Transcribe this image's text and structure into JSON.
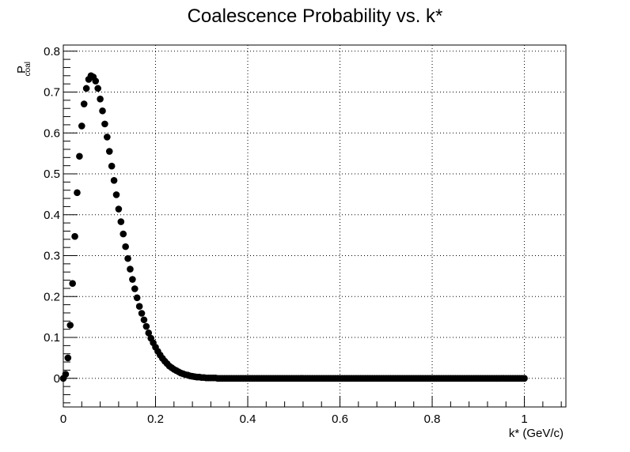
{
  "chart_data": {
    "type": "scatter",
    "title": "Coalescence Probability vs. k*",
    "xlabel": "k* (GeV/c)",
    "ylabel_main": "P",
    "ylabel_sub": "coal",
    "xlim": [
      0,
      1.09
    ],
    "ylim": [
      -0.07,
      0.815
    ],
    "grid": true,
    "x_ticks": [
      {
        "value": 0,
        "label": "0"
      },
      {
        "value": 0.2,
        "label": "0.2"
      },
      {
        "value": 0.4,
        "label": "0.4"
      },
      {
        "value": 0.6,
        "label": "0.6"
      },
      {
        "value": 0.8,
        "label": "0.8"
      },
      {
        "value": 1.0,
        "label": "1"
      }
    ],
    "y_ticks": [
      {
        "value": 0,
        "label": "0"
      },
      {
        "value": 0.1,
        "label": "0.1"
      },
      {
        "value": 0.2,
        "label": "0.2"
      },
      {
        "value": 0.3,
        "label": "0.3"
      },
      {
        "value": 0.4,
        "label": "0.4"
      },
      {
        "value": 0.5,
        "label": "0.5"
      },
      {
        "value": 0.6,
        "label": "0.6"
      },
      {
        "value": 0.7,
        "label": "0.7"
      },
      {
        "value": 0.8,
        "label": "0.8"
      }
    ],
    "marker_color": "#000000",
    "x": [
      0.0,
      0.005,
      0.01,
      0.015,
      0.02,
      0.025,
      0.03,
      0.035,
      0.04,
      0.045,
      0.05,
      0.055,
      0.06,
      0.065,
      0.07,
      0.075,
      0.08,
      0.085,
      0.09,
      0.095,
      0.1,
      0.105,
      0.11,
      0.115,
      0.12,
      0.125,
      0.13,
      0.135,
      0.14,
      0.145,
      0.15,
      0.155,
      0.16,
      0.165,
      0.17,
      0.175,
      0.18,
      0.185,
      0.19,
      0.195,
      0.2,
      0.205,
      0.21,
      0.215,
      0.22,
      0.225,
      0.23,
      0.235,
      0.24,
      0.245,
      0.25,
      0.255,
      0.26,
      0.265,
      0.27,
      0.275,
      0.28,
      0.285,
      0.29,
      0.295,
      0.3,
      0.305,
      0.31,
      0.315,
      0.32,
      0.325,
      0.33,
      0.335,
      0.34,
      0.345,
      0.35,
      0.355,
      0.36,
      0.365,
      0.37,
      0.375,
      0.38,
      0.385,
      0.39,
      0.395,
      0.4,
      0.405,
      0.41,
      0.415,
      0.42,
      0.425,
      0.43,
      0.435,
      0.44,
      0.445,
      0.45,
      0.455,
      0.46,
      0.465,
      0.47,
      0.475,
      0.48,
      0.485,
      0.49,
      0.495,
      0.5,
      0.505,
      0.51,
      0.515,
      0.52,
      0.525,
      0.53,
      0.535,
      0.54,
      0.545,
      0.55,
      0.555,
      0.56,
      0.565,
      0.57,
      0.575,
      0.58,
      0.585,
      0.59,
      0.595,
      0.6,
      0.605,
      0.61,
      0.615,
      0.62,
      0.625,
      0.63,
      0.635,
      0.64,
      0.645,
      0.65,
      0.655,
      0.66,
      0.665,
      0.67,
      0.675,
      0.68,
      0.685,
      0.69,
      0.695,
      0.7,
      0.705,
      0.71,
      0.715,
      0.72,
      0.725,
      0.73,
      0.735,
      0.74,
      0.745,
      0.75,
      0.755,
      0.76,
      0.765,
      0.77,
      0.775,
      0.78,
      0.785,
      0.79,
      0.795,
      0.8,
      0.805,
      0.81,
      0.815,
      0.82,
      0.825,
      0.83,
      0.835,
      0.84,
      0.845,
      0.85,
      0.855,
      0.86,
      0.865,
      0.87,
      0.875,
      0.88,
      0.885,
      0.89,
      0.895,
      0.9,
      0.905,
      0.91,
      0.915,
      0.92,
      0.925,
      0.93,
      0.935,
      0.94,
      0.945,
      0.95,
      0.955,
      0.96,
      0.965,
      0.97,
      0.975,
      0.98,
      0.985,
      0.99,
      0.995,
      1.0
    ],
    "y": [
      0.0,
      0.01,
      0.05,
      0.13,
      0.232,
      0.347,
      0.454,
      0.543,
      0.617,
      0.671,
      0.709,
      0.731,
      0.74,
      0.737,
      0.727,
      0.709,
      0.683,
      0.654,
      0.622,
      0.59,
      0.555,
      0.519,
      0.484,
      0.449,
      0.414,
      0.383,
      0.353,
      0.322,
      0.293,
      0.267,
      0.242,
      0.219,
      0.197,
      0.176,
      0.159,
      0.143,
      0.127,
      0.111,
      0.098,
      0.087,
      0.076,
      0.066,
      0.057,
      0.049,
      0.042,
      0.036,
      0.03,
      0.026,
      0.022,
      0.019,
      0.016,
      0.013,
      0.011,
      0.009,
      0.008,
      0.006,
      0.005,
      0.004,
      0.003,
      0.003,
      0.002,
      0.002,
      0.001,
      0.001,
      0.001,
      0.001,
      0.001,
      0.0,
      0.0,
      0.0,
      0.0,
      0.0,
      0.0,
      0.0,
      0.0,
      0.0,
      0.0,
      0.0,
      0.0,
      0.0,
      0.0,
      0.0,
      0.0,
      0.0,
      0.0,
      0.0,
      0.0,
      0.0,
      0.0,
      0.0,
      0.0,
      0.0,
      0.0,
      0.0,
      0.0,
      0.0,
      0.0,
      0.0,
      0.0,
      0.0,
      0.0,
      0.0,
      0.0,
      0.0,
      0.0,
      0.0,
      0.0,
      0.0,
      0.0,
      0.0,
      0.0,
      0.0,
      0.0,
      0.0,
      0.0,
      0.0,
      0.0,
      0.0,
      0.0,
      0.0,
      0.0,
      0.0,
      0.0,
      0.0,
      0.0,
      0.0,
      0.0,
      0.0,
      0.0,
      0.0,
      0.0,
      0.0,
      0.0,
      0.0,
      0.0,
      0.0,
      0.0,
      0.0,
      0.0,
      0.0,
      0.0,
      0.0,
      0.0,
      0.0,
      0.0,
      0.0,
      0.0,
      0.0,
      0.0,
      0.0,
      0.0,
      0.0,
      0.0,
      0.0,
      0.0,
      0.0,
      0.0,
      0.0,
      0.0,
      0.0,
      0.0,
      0.0,
      0.0,
      0.0,
      0.0,
      0.0,
      0.0,
      0.0,
      0.0,
      0.0,
      0.0,
      0.0,
      0.0,
      0.0,
      0.0,
      0.0,
      0.0,
      0.0,
      0.0,
      0.0,
      0.0,
      0.0,
      0.0,
      0.0,
      0.0,
      0.0,
      0.0,
      0.0,
      0.0,
      0.0,
      0.0,
      0.0,
      0.0,
      0.0,
      0.0,
      0.0,
      0.0,
      0.0,
      0.0,
      0.0,
      0.0
    ]
  }
}
